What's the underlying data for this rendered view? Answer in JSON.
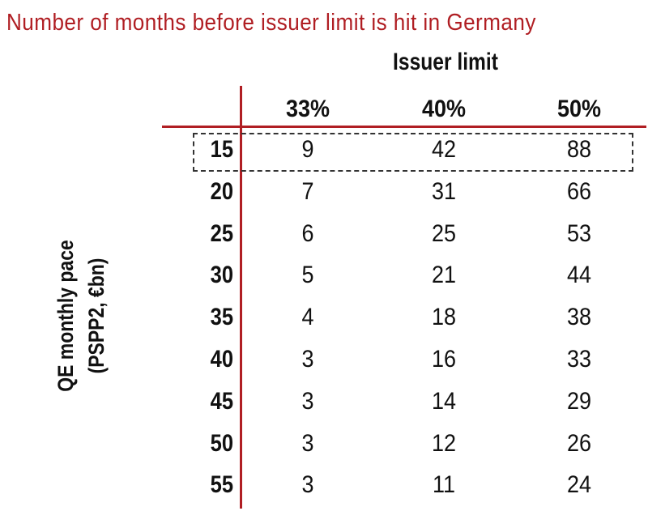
{
  "chart_data": {
    "type": "table",
    "title": "Number of months before issuer limit is hit in Germany",
    "column_header": "Issuer limit",
    "row_header": [
      "QE monthly pace",
      "(PSPP2, €bn)"
    ],
    "columns": [
      "33%",
      "40%",
      "50%"
    ],
    "rows": [
      {
        "label": "15",
        "values": [
          "9",
          "42",
          "88"
        ],
        "highlighted": true
      },
      {
        "label": "20",
        "values": [
          "7",
          "31",
          "66"
        ]
      },
      {
        "label": "25",
        "values": [
          "6",
          "25",
          "53"
        ]
      },
      {
        "label": "30",
        "values": [
          "5",
          "21",
          "44"
        ]
      },
      {
        "label": "35",
        "values": [
          "4",
          "18",
          "38"
        ]
      },
      {
        "label": "40",
        "values": [
          "3",
          "16",
          "33"
        ]
      },
      {
        "label": "45",
        "values": [
          "3",
          "14",
          "29"
        ]
      },
      {
        "label": "50",
        "values": [
          "3",
          "12",
          "26"
        ]
      },
      {
        "label": "55",
        "values": [
          "3",
          "11",
          "24"
        ]
      }
    ],
    "colors": {
      "title": "#b01e23",
      "rules": "#b01e23",
      "text": "#111111"
    }
  }
}
